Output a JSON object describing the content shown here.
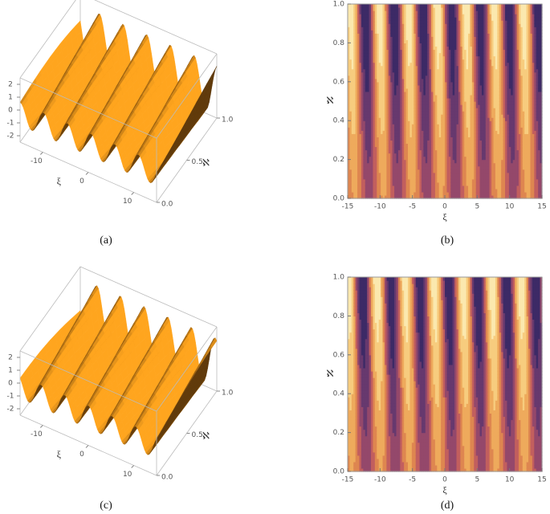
{
  "chart_data": [
    {
      "type": "surface3d",
      "caption": "(a)",
      "xlabel": "ξ",
      "ylabel": "ℵ",
      "xlim": [
        -15,
        15
      ],
      "ylim": [
        0,
        1
      ],
      "zlim": [
        -2.5,
        2.5
      ],
      "xticks": [
        -10,
        0,
        10
      ],
      "yticks": [
        {
          "value": 0,
          "label": "0.0"
        },
        0.5,
        {
          "value": 1,
          "label": "1.0"
        }
      ],
      "zticks": [
        2,
        1,
        0,
        -1,
        -2
      ]
    },
    {
      "type": "contour",
      "caption": "(b)",
      "xlabel": "ξ",
      "ylabel": "ℵ",
      "xlim": [
        -15,
        15
      ],
      "ylim": [
        0,
        1
      ],
      "xticks": [
        -15,
        -10,
        -5,
        0,
        5,
        10,
        15
      ],
      "yticks": [
        {
          "value": 0,
          "label": "0.0"
        },
        0.2,
        0.4,
        0.6,
        0.8,
        {
          "value": 1,
          "label": "1.0"
        }
      ]
    },
    {
      "type": "surface3d",
      "caption": "(c)",
      "xlabel": "ξ",
      "ylabel": "ℵ",
      "xlim": [
        -15,
        15
      ],
      "ylim": [
        0,
        1
      ],
      "zlim": [
        -2.5,
        2.5
      ],
      "xticks": [
        -10,
        0,
        10
      ],
      "yticks": [
        {
          "value": 0,
          "label": "0.0"
        },
        0.5,
        {
          "value": 1,
          "label": "1.0"
        }
      ],
      "zticks": [
        2,
        1,
        0,
        -1,
        -2
      ]
    },
    {
      "type": "contour",
      "caption": "(d)",
      "xlabel": "ξ",
      "ylabel": "ℵ",
      "xlim": [
        -15,
        15
      ],
      "ylim": [
        0,
        1
      ],
      "xticks": [
        -15,
        -10,
        -5,
        0,
        5,
        10,
        15
      ],
      "yticks": [
        {
          "value": 0,
          "label": "0.0"
        },
        0.2,
        0.4,
        0.6,
        0.8,
        {
          "value": 1,
          "label": "1.0"
        }
      ]
    }
  ]
}
